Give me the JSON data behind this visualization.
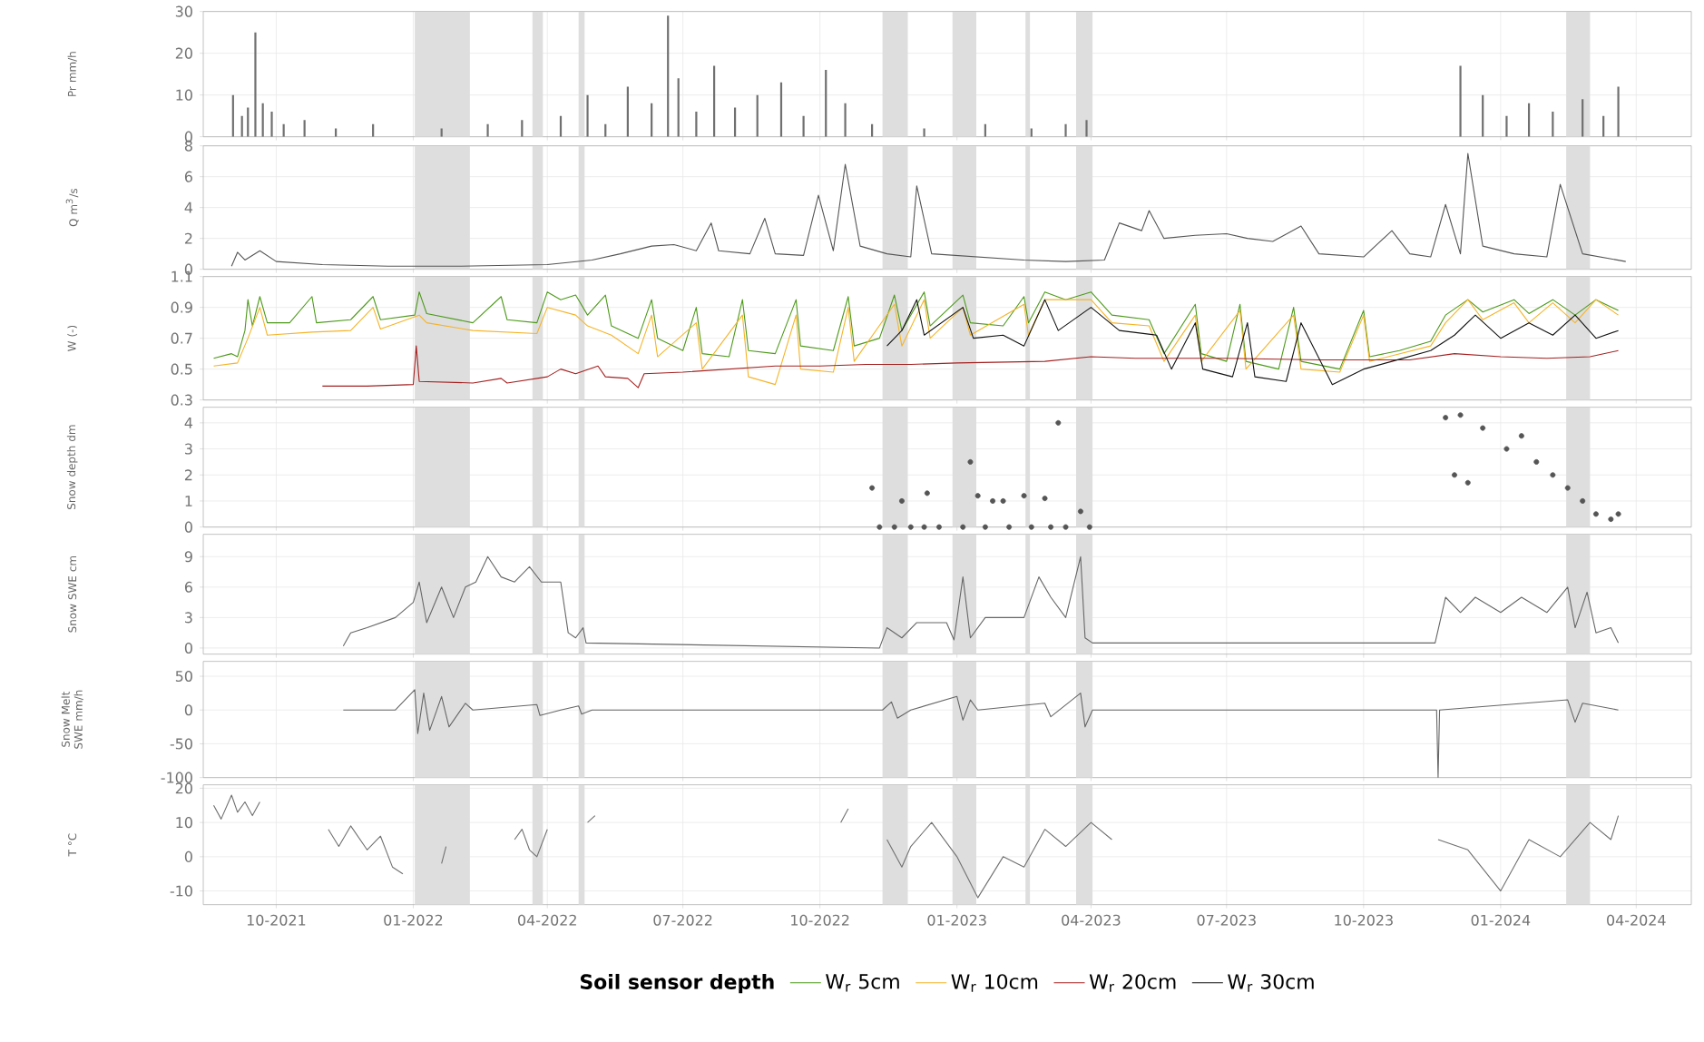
{
  "chart_data": [
    {
      "type": "bar",
      "ylabel": "Pr mm/h",
      "ylim": [
        0,
        30
      ],
      "yticks": [
        0,
        10,
        20,
        30
      ],
      "xlim": [
        "2021-08-13",
        "2024-05-08"
      ],
      "grid": true,
      "tick_labels": "y",
      "xticks": [
        {
          "value": "2021-10-01",
          "label": null
        },
        {
          "value": "2022-01-01",
          "label": null
        },
        {
          "value": "2022-04-01",
          "label": null
        },
        {
          "value": "2022-07-01",
          "label": null
        },
        {
          "value": "2022-10-01",
          "label": null
        },
        {
          "value": "2023-01-01",
          "label": null
        },
        {
          "value": "2023-04-01",
          "label": null
        },
        {
          "value": "2023-07-01",
          "label": null
        },
        {
          "value": "2023-10-01",
          "label": null
        },
        {
          "value": "2024-01-01",
          "label": null
        },
        {
          "value": "2024-04-01",
          "label": null
        }
      ],
      "bands": [
        {
          "axis": "x",
          "from": "2022-01-02",
          "to": "2022-02-08",
          "color": "#dedede"
        },
        {
          "axis": "x",
          "from": "2022-03-22",
          "to": "2022-03-29",
          "color": "#dedede"
        },
        {
          "axis": "x",
          "from": "2022-04-22",
          "to": "2022-04-26",
          "color": "#dedede"
        },
        {
          "axis": "x",
          "from": "2022-11-12",
          "to": "2022-11-29",
          "color": "#dedede"
        },
        {
          "axis": "x",
          "from": "2022-12-29",
          "to": "2023-01-14",
          "color": "#dedede"
        },
        {
          "axis": "x",
          "from": "2023-02-16",
          "to": "2023-02-19",
          "color": "#dedede"
        },
        {
          "axis": "x",
          "from": "2023-03-22",
          "to": "2023-04-02",
          "color": "#dedede"
        },
        {
          "axis": "x",
          "from": "2024-02-14",
          "to": "2024-03-01",
          "color": "#dedede"
        }
      ],
      "series": [
        {
          "color": "#707070",
          "x": [
            "2021-09-02",
            "2021-09-08",
            "2021-09-12",
            "2021-09-17",
            "2021-09-22",
            "2021-09-28",
            "2021-10-06",
            "2021-10-20",
            "2021-11-10",
            "2021-12-05",
            "2022-01-20",
            "2022-02-20",
            "2022-03-15",
            "2022-04-10",
            "2022-04-28",
            "2022-05-10",
            "2022-05-25",
            "2022-06-10",
            "2022-06-21",
            "2022-06-28",
            "2022-07-10",
            "2022-07-22",
            "2022-08-05",
            "2022-08-20",
            "2022-09-05",
            "2022-09-20",
            "2022-10-05",
            "2022-10-18",
            "2022-11-05",
            "2022-12-10",
            "2023-01-20",
            "2023-02-20",
            "2023-03-15",
            "2023-03-29",
            "2023-12-05",
            "2023-12-20",
            "2024-01-05",
            "2024-01-20",
            "2024-02-05",
            "2024-02-25",
            "2024-03-10",
            "2024-03-20"
          ],
          "values": [
            10,
            5,
            7,
            25,
            8,
            6,
            3,
            4,
            2,
            3,
            2,
            3,
            4,
            5,
            10,
            3,
            12,
            8,
            29,
            14,
            6,
            17,
            7,
            10,
            13,
            5,
            16,
            8,
            3,
            2,
            3,
            2,
            3,
            4,
            17,
            10,
            5,
            8,
            6,
            9,
            5,
            12
          ]
        }
      ]
    },
    {
      "type": "line",
      "ylabel": "Q m$^{3}$/s",
      "ylim": [
        0,
        8
      ],
      "yticks": [
        0,
        2,
        4,
        6,
        8
      ],
      "xlim": [
        "2021-08-13",
        "2024-05-08"
      ],
      "grid": true,
      "tick_labels": "y",
      "xticks": [
        {
          "value": "2021-10-01",
          "label": null
        },
        {
          "value": "2022-01-01",
          "label": null
        },
        {
          "value": "2022-04-01",
          "label": null
        },
        {
          "value": "2022-07-01",
          "label": null
        },
        {
          "value": "2022-10-01",
          "label": null
        },
        {
          "value": "2023-01-01",
          "label": null
        },
        {
          "value": "2023-04-01",
          "label": null
        },
        {
          "value": "2023-07-01",
          "label": null
        },
        {
          "value": "2023-10-01",
          "label": null
        },
        {
          "value": "2024-01-01",
          "label": null
        },
        {
          "value": "2024-04-01",
          "label": null
        }
      ],
      "bands": [
        {
          "axis": "x",
          "from": "2022-01-02",
          "to": "2022-02-08",
          "color": "#dedede"
        },
        {
          "axis": "x",
          "from": "2022-03-22",
          "to": "2022-03-29",
          "color": "#dedede"
        },
        {
          "axis": "x",
          "from": "2022-04-22",
          "to": "2022-04-26",
          "color": "#dedede"
        },
        {
          "axis": "x",
          "from": "2022-11-12",
          "to": "2022-11-29",
          "color": "#dedede"
        },
        {
          "axis": "x",
          "from": "2022-12-29",
          "to": "2023-01-14",
          "color": "#dedede"
        },
        {
          "axis": "x",
          "from": "2023-02-16",
          "to": "2023-02-19",
          "color": "#dedede"
        },
        {
          "axis": "x",
          "from": "2023-03-22",
          "to": "2023-04-02",
          "color": "#dedede"
        },
        {
          "axis": "x",
          "from": "2024-02-14",
          "to": "2024-03-01",
          "color": "#dedede"
        }
      ],
      "series": [
        {
          "color": "#555555",
          "x": [
            "2021-09-01",
            "2021-09-05",
            "2021-09-10",
            "2021-09-20",
            "2021-10-01",
            "2021-11-01",
            "2021-12-15",
            "2022-02-01",
            "2022-04-01",
            "2022-05-01",
            "2022-05-20",
            "2022-06-10",
            "2022-06-25",
            "2022-07-10",
            "2022-07-20",
            "2022-07-25",
            "2022-08-15",
            "2022-08-25",
            "2022-09-01",
            "2022-09-20",
            "2022-09-30",
            "2022-10-10",
            "2022-10-18",
            "2022-10-28",
            "2022-11-15",
            "2022-12-01",
            "2022-12-05",
            "2022-12-15",
            "2023-01-15",
            "2023-02-15",
            "2023-03-15",
            "2023-04-10",
            "2023-04-20",
            "2023-05-05",
            "2023-05-10",
            "2023-05-20",
            "2023-06-10",
            "2023-07-01",
            "2023-07-15",
            "2023-08-01",
            "2023-08-20",
            "2023-09-01",
            "2023-10-01",
            "2023-10-20",
            "2023-11-01",
            "2023-11-15",
            "2023-11-25",
            "2023-12-05",
            "2023-12-10",
            "2023-12-20",
            "2024-01-10",
            "2024-02-01",
            "2024-02-10",
            "2024-02-25",
            "2024-03-25"
          ],
          "values": [
            0.2,
            1.1,
            0.6,
            1.2,
            0.5,
            0.3,
            0.2,
            0.2,
            0.3,
            0.6,
            1.0,
            1.5,
            1.6,
            1.2,
            3.0,
            1.2,
            1.0,
            3.3,
            1.0,
            0.9,
            4.8,
            1.2,
            6.8,
            1.5,
            1.0,
            0.8,
            5.4,
            1.0,
            0.8,
            0.6,
            0.5,
            0.6,
            3.0,
            2.5,
            3.8,
            2.0,
            2.2,
            2.3,
            2.0,
            1.8,
            2.8,
            1.0,
            0.8,
            2.5,
            1.0,
            0.8,
            4.2,
            1.0,
            7.5,
            1.5,
            1.0,
            0.8,
            5.5,
            1.0,
            0.5
          ]
        }
      ]
    },
    {
      "type": "line",
      "ylabel": "W (-)",
      "ylim": [
        0.3,
        1.1
      ],
      "yticks": [
        0.3,
        0.5,
        0.7,
        0.9,
        1.1
      ],
      "xlim": [
        "2021-08-13",
        "2024-05-08"
      ],
      "grid": true,
      "tick_labels": "y",
      "legend": "bottom",
      "legend_title": "Soil sensor depth",
      "xticks": [
        {
          "value": "2021-10-01",
          "label": null
        },
        {
          "value": "2022-01-01",
          "label": null
        },
        {
          "value": "2022-04-01",
          "label": null
        },
        {
          "value": "2022-07-01",
          "label": null
        },
        {
          "value": "2022-10-01",
          "label": null
        },
        {
          "value": "2023-01-01",
          "label": null
        },
        {
          "value": "2023-04-01",
          "label": null
        },
        {
          "value": "2023-07-01",
          "label": null
        },
        {
          "value": "2023-10-01",
          "label": null
        },
        {
          "value": "2024-01-01",
          "label": null
        },
        {
          "value": "2024-04-01",
          "label": null
        }
      ],
      "bands": [
        {
          "axis": "x",
          "from": "2022-01-02",
          "to": "2022-02-08",
          "color": "#dedede"
        },
        {
          "axis": "x",
          "from": "2022-03-22",
          "to": "2022-03-29",
          "color": "#dedede"
        },
        {
          "axis": "x",
          "from": "2022-04-22",
          "to": "2022-04-26",
          "color": "#dedede"
        },
        {
          "axis": "x",
          "from": "2022-11-12",
          "to": "2022-11-29",
          "color": "#dedede"
        },
        {
          "axis": "x",
          "from": "2022-12-29",
          "to": "2023-01-14",
          "color": "#dedede"
        },
        {
          "axis": "x",
          "from": "2023-02-16",
          "to": "2023-02-19",
          "color": "#dedede"
        },
        {
          "axis": "x",
          "from": "2023-03-22",
          "to": "2023-04-02",
          "color": "#dedede"
        },
        {
          "axis": "x",
          "from": "2024-02-14",
          "to": "2024-03-01",
          "color": "#dedede"
        }
      ],
      "series": [
        {
          "name": "W$_{r}$ 5cm",
          "color": "#4d9a1a",
          "x": [
            "2021-08-20",
            "2021-09-01",
            "2021-09-05",
            "2021-09-10",
            "2021-09-12",
            "2021-09-15",
            "2021-09-20",
            "2021-09-25",
            "2021-10-10",
            "2021-10-25",
            "2021-10-28",
            "2021-11-20",
            "2021-12-05",
            "2021-12-10",
            "2022-01-02",
            "2022-01-05",
            "2022-01-10",
            "2022-02-10",
            "2022-03-01",
            "2022-03-05",
            "2022-03-25",
            "2022-04-01",
            "2022-04-10",
            "2022-04-20",
            "2022-04-28",
            "2022-05-10",
            "2022-05-14",
            "2022-06-01",
            "2022-06-10",
            "2022-06-14",
            "2022-07-01",
            "2022-07-10",
            "2022-07-14",
            "2022-08-01",
            "2022-08-10",
            "2022-08-14",
            "2022-09-01",
            "2022-09-15",
            "2022-09-18",
            "2022-10-10",
            "2022-10-20",
            "2022-10-24",
            "2022-11-10",
            "2022-11-20",
            "2022-11-25",
            "2022-12-10",
            "2022-12-14",
            "2023-01-05",
            "2023-01-10",
            "2023-02-01",
            "2023-02-15",
            "2023-02-18",
            "2023-03-01",
            "2023-03-15",
            "2023-04-01",
            "2023-04-15",
            "2023-05-10",
            "2023-05-20",
            "2023-06-10",
            "2023-06-14",
            "2023-07-01",
            "2023-07-10",
            "2023-07-14",
            "2023-08-05",
            "2023-08-15",
            "2023-08-20",
            "2023-09-15",
            "2023-10-01",
            "2023-10-05",
            "2023-10-25",
            "2023-11-15",
            "2023-11-25",
            "2023-12-10",
            "2023-12-20",
            "2024-01-10",
            "2024-01-20",
            "2024-02-05",
            "2024-02-20",
            "2024-03-05",
            "2024-03-20"
          ],
          "values": [
            0.57,
            0.6,
            0.58,
            0.75,
            0.95,
            0.78,
            0.97,
            0.8,
            0.8,
            0.97,
            0.8,
            0.82,
            0.97,
            0.82,
            0.85,
            1.0,
            0.86,
            0.8,
            0.97,
            0.82,
            0.8,
            1.0,
            0.95,
            0.98,
            0.85,
            0.98,
            0.78,
            0.7,
            0.95,
            0.7,
            0.62,
            0.9,
            0.6,
            0.58,
            0.95,
            0.62,
            0.6,
            0.95,
            0.65,
            0.62,
            0.97,
            0.65,
            0.7,
            0.98,
            0.75,
            1.0,
            0.78,
            0.98,
            0.8,
            0.78,
            0.97,
            0.8,
            1.0,
            0.95,
            1.0,
            0.85,
            0.82,
            0.6,
            0.92,
            0.6,
            0.55,
            0.92,
            0.55,
            0.5,
            0.9,
            0.55,
            0.5,
            0.88,
            0.58,
            0.62,
            0.68,
            0.85,
            0.95,
            0.87,
            0.95,
            0.86,
            0.95,
            0.85,
            0.95,
            0.88
          ]
        },
        {
          "name": "W$_{r}$ 10cm",
          "color": "#f5b428",
          "x": [
            "2021-08-20",
            "2021-09-05",
            "2021-09-12",
            "2021-09-20",
            "2021-09-25",
            "2021-10-25",
            "2021-11-20",
            "2021-12-05",
            "2021-12-10",
            "2022-01-05",
            "2022-01-10",
            "2022-02-10",
            "2022-03-25",
            "2022-04-01",
            "2022-04-20",
            "2022-04-28",
            "2022-05-14",
            "2022-06-01",
            "2022-06-10",
            "2022-06-14",
            "2022-07-10",
            "2022-07-14",
            "2022-08-10",
            "2022-08-14",
            "2022-09-01",
            "2022-09-15",
            "2022-09-18",
            "2022-10-10",
            "2022-10-20",
            "2022-10-24",
            "2022-11-20",
            "2022-11-25",
            "2022-12-10",
            "2022-12-14",
            "2023-01-05",
            "2023-01-10",
            "2023-02-15",
            "2023-02-18",
            "2023-03-01",
            "2023-04-01",
            "2023-04-15",
            "2023-05-10",
            "2023-05-20",
            "2023-06-10",
            "2023-06-14",
            "2023-07-10",
            "2023-07-14",
            "2023-08-15",
            "2023-08-20",
            "2023-09-15",
            "2023-10-01",
            "2023-10-05",
            "2023-11-15",
            "2023-11-25",
            "2023-12-10",
            "2023-12-20",
            "2024-01-10",
            "2024-01-20",
            "2024-02-05",
            "2024-02-20",
            "2024-03-05",
            "2024-03-20"
          ],
          "values": [
            0.52,
            0.54,
            0.7,
            0.9,
            0.72,
            0.74,
            0.75,
            0.9,
            0.76,
            0.85,
            0.8,
            0.75,
            0.73,
            0.9,
            0.85,
            0.78,
            0.72,
            0.6,
            0.85,
            0.58,
            0.8,
            0.5,
            0.85,
            0.45,
            0.4,
            0.85,
            0.5,
            0.48,
            0.9,
            0.55,
            0.92,
            0.65,
            0.95,
            0.7,
            0.9,
            0.72,
            0.92,
            0.72,
            0.95,
            0.95,
            0.8,
            0.78,
            0.55,
            0.85,
            0.55,
            0.88,
            0.5,
            0.85,
            0.5,
            0.48,
            0.85,
            0.55,
            0.65,
            0.8,
            0.95,
            0.82,
            0.93,
            0.8,
            0.93,
            0.8,
            0.95,
            0.85
          ]
        },
        {
          "name": "W$_{r}$ 20cm",
          "color": "#a52020",
          "x": [
            "2021-11-01",
            "2021-12-01",
            "2022-01-01",
            "2022-01-03",
            "2022-01-05",
            "2022-02-10",
            "2022-03-01",
            "2022-03-05",
            "2022-04-01",
            "2022-04-10",
            "2022-04-20",
            "2022-05-05",
            "2022-05-10",
            "2022-05-25",
            "2022-06-01",
            "2022-06-05",
            "2022-07-01",
            "2022-08-01",
            "2022-09-01",
            "2022-10-01",
            "2022-11-01",
            "2022-12-01",
            "2023-01-01",
            "2023-03-01",
            "2023-04-01",
            "2023-05-01",
            "2023-07-01",
            "2023-09-01",
            "2023-11-01",
            "2023-12-01",
            "2024-01-01",
            "2024-02-01",
            "2024-03-01",
            "2024-03-20"
          ],
          "values": [
            0.39,
            0.39,
            0.4,
            0.65,
            0.42,
            0.41,
            0.44,
            0.41,
            0.45,
            0.5,
            0.47,
            0.52,
            0.45,
            0.44,
            0.38,
            0.47,
            0.48,
            0.5,
            0.52,
            0.52,
            0.53,
            0.53,
            0.54,
            0.55,
            0.58,
            0.57,
            0.57,
            0.56,
            0.56,
            0.6,
            0.58,
            0.57,
            0.58,
            0.62
          ]
        },
        {
          "name": "W$_{r}$ 30cm",
          "color": "#111111",
          "x": [
            "2022-11-15",
            "2022-11-25",
            "2022-12-05",
            "2022-12-10",
            "2023-01-05",
            "2023-01-12",
            "2023-02-01",
            "2023-02-15",
            "2023-03-01",
            "2023-03-10",
            "2023-04-01",
            "2023-04-20",
            "2023-05-15",
            "2023-05-25",
            "2023-06-10",
            "2023-06-15",
            "2023-07-05",
            "2023-07-15",
            "2023-07-20",
            "2023-08-10",
            "2023-08-20",
            "2023-09-10",
            "2023-10-01",
            "2023-10-20",
            "2023-11-15",
            "2023-12-01",
            "2023-12-15",
            "2024-01-01",
            "2024-01-20",
            "2024-02-05",
            "2024-02-20",
            "2024-03-05",
            "2024-03-20"
          ],
          "values": [
            0.65,
            0.75,
            0.95,
            0.72,
            0.9,
            0.7,
            0.72,
            0.65,
            0.95,
            0.75,
            0.9,
            0.75,
            0.72,
            0.5,
            0.8,
            0.5,
            0.45,
            0.8,
            0.45,
            0.42,
            0.8,
            0.4,
            0.5,
            0.55,
            0.62,
            0.72,
            0.85,
            0.7,
            0.8,
            0.72,
            0.85,
            0.7,
            0.75
          ]
        }
      ]
    },
    {
      "type": "scatter",
      "ylabel": "Snow depth dm",
      "ylim": [
        0,
        4.6
      ],
      "yticks": [
        0,
        1,
        2,
        3,
        4
      ],
      "xlim": [
        "2021-08-13",
        "2024-05-08"
      ],
      "grid": true,
      "tick_labels": "y",
      "xticks": [
        {
          "value": "2021-10-01",
          "label": null
        },
        {
          "value": "2022-01-01",
          "label": null
        },
        {
          "value": "2022-04-01",
          "label": null
        },
        {
          "value": "2022-07-01",
          "label": null
        },
        {
          "value": "2022-10-01",
          "label": null
        },
        {
          "value": "2023-01-01",
          "label": null
        },
        {
          "value": "2023-04-01",
          "label": null
        },
        {
          "value": "2023-07-01",
          "label": null
        },
        {
          "value": "2023-10-01",
          "label": null
        },
        {
          "value": "2024-01-01",
          "label": null
        },
        {
          "value": "2024-04-01",
          "label": null
        }
      ],
      "bands": [
        {
          "axis": "x",
          "from": "2022-01-02",
          "to": "2022-02-08",
          "color": "#dedede"
        },
        {
          "axis": "x",
          "from": "2022-03-22",
          "to": "2022-03-29",
          "color": "#dedede"
        },
        {
          "axis": "x",
          "from": "2022-04-22",
          "to": "2022-04-26",
          "color": "#dedede"
        },
        {
          "axis": "x",
          "from": "2022-11-12",
          "to": "2022-11-29",
          "color": "#dedede"
        },
        {
          "axis": "x",
          "from": "2022-12-29",
          "to": "2023-01-14",
          "color": "#dedede"
        },
        {
          "axis": "x",
          "from": "2023-02-16",
          "to": "2023-02-19",
          "color": "#dedede"
        },
        {
          "axis": "x",
          "from": "2023-03-22",
          "to": "2023-04-02",
          "color": "#dedede"
        },
        {
          "axis": "x",
          "from": "2024-02-14",
          "to": "2024-03-01",
          "color": "#dedede"
        }
      ],
      "series": [
        {
          "color": "#555555",
          "x": [
            "2022-11-05",
            "2022-11-10",
            "2022-11-20",
            "2022-11-25",
            "2022-12-01",
            "2022-12-10",
            "2022-12-12",
            "2022-12-20",
            "2023-01-05",
            "2023-01-10",
            "2023-01-15",
            "2023-01-20",
            "2023-01-25",
            "2023-02-01",
            "2023-02-05",
            "2023-02-15",
            "2023-02-20",
            "2023-03-01",
            "2023-03-05",
            "2023-03-10",
            "2023-03-15",
            "2023-03-25",
            "2023-03-31",
            "2023-11-25",
            "2023-12-01",
            "2023-12-05",
            "2023-12-10",
            "2023-12-20",
            "2024-01-05",
            "2024-01-15",
            "2024-01-25",
            "2024-02-05",
            "2024-02-15",
            "2024-02-25",
            "2024-03-05",
            "2024-03-15",
            "2024-03-20"
          ],
          "values": [
            1.5,
            0,
            0,
            1.0,
            0,
            0,
            1.3,
            0,
            0,
            2.5,
            1.2,
            0,
            1.0,
            1.0,
            0,
            1.2,
            0,
            1.1,
            0,
            4.0,
            0,
            0.6,
            0,
            4.2,
            2.0,
            4.3,
            1.7,
            3.8,
            3.0,
            3.5,
            2.5,
            2.0,
            1.5,
            1.0,
            0.5,
            0.3,
            0.5
          ]
        }
      ]
    },
    {
      "type": "line",
      "ylabel": "Snow SWE cm",
      "ylim": [
        -0.6,
        11.2
      ],
      "yticks": [
        0,
        3,
        6,
        9
      ],
      "xlim": [
        "2021-08-13",
        "2024-05-08"
      ],
      "grid": true,
      "tick_labels": "y",
      "xticks": [
        {
          "value": "2021-10-01",
          "label": null
        },
        {
          "value": "2022-01-01",
          "label": null
        },
        {
          "value": "2022-04-01",
          "label": null
        },
        {
          "value": "2022-07-01",
          "label": null
        },
        {
          "value": "2022-10-01",
          "label": null
        },
        {
          "value": "2023-01-01",
          "label": null
        },
        {
          "value": "2023-04-01",
          "label": null
        },
        {
          "value": "2023-07-01",
          "label": null
        },
        {
          "value": "2023-10-01",
          "label": null
        },
        {
          "value": "2024-01-01",
          "label": null
        },
        {
          "value": "2024-04-01",
          "label": null
        }
      ],
      "bands": [
        {
          "axis": "x",
          "from": "2022-01-02",
          "to": "2022-02-08",
          "color": "#dedede"
        },
        {
          "axis": "x",
          "from": "2022-03-22",
          "to": "2022-03-29",
          "color": "#dedede"
        },
        {
          "axis": "x",
          "from": "2022-04-22",
          "to": "2022-04-26",
          "color": "#dedede"
        },
        {
          "axis": "x",
          "from": "2022-11-12",
          "to": "2022-11-29",
          "color": "#dedede"
        },
        {
          "axis": "x",
          "from": "2022-12-29",
          "to": "2023-01-14",
          "color": "#dedede"
        },
        {
          "axis": "x",
          "from": "2023-02-16",
          "to": "2023-02-19",
          "color": "#dedede"
        },
        {
          "axis": "x",
          "from": "2023-03-22",
          "to": "2023-04-02",
          "color": "#dedede"
        },
        {
          "axis": "x",
          "from": "2024-02-14",
          "to": "2024-03-01",
          "color": "#dedede"
        }
      ],
      "series": [
        {
          "color": "#666666",
          "x": [
            "2021-11-15",
            "2021-11-20",
            "2021-12-01",
            "2021-12-20",
            "2022-01-01",
            "2022-01-05",
            "2022-01-10",
            "2022-01-20",
            "2022-01-28",
            "2022-02-05",
            "2022-02-12",
            "2022-02-20",
            "2022-03-01",
            "2022-03-10",
            "2022-03-20",
            "2022-03-28",
            "2022-04-10",
            "2022-04-15",
            "2022-04-20",
            "2022-04-25",
            "2022-04-27",
            "2022-11-10",
            "2022-11-15",
            "2022-11-25",
            "2022-12-05",
            "2022-12-25",
            "2022-12-30",
            "2023-01-05",
            "2023-01-10",
            "2023-01-20",
            "2023-02-15",
            "2023-02-25",
            "2023-03-05",
            "2023-03-15",
            "2023-03-25",
            "2023-03-28",
            "2023-04-02",
            "2023-11-18",
            "2023-11-25",
            "2023-12-05",
            "2023-12-15",
            "2024-01-01",
            "2024-01-15",
            "2024-02-01",
            "2024-02-15",
            "2024-02-20",
            "2024-02-28",
            "2024-03-05",
            "2024-03-15",
            "2024-03-20"
          ],
          "values": [
            0.2,
            1.5,
            2.0,
            3.0,
            4.5,
            6.5,
            2.5,
            6.0,
            3.0,
            6.0,
            6.5,
            9.0,
            7.0,
            6.5,
            8.0,
            6.5,
            6.5,
            1.5,
            1.0,
            2.0,
            0.5,
            0,
            2.0,
            1.0,
            2.5,
            2.5,
            0.8,
            7.0,
            1.0,
            3.0,
            3.0,
            7.0,
            5.0,
            3.0,
            9.0,
            1.0,
            0.5,
            0.5,
            5.0,
            3.5,
            5.0,
            3.5,
            5.0,
            3.5,
            6.0,
            2.0,
            5.5,
            1.5,
            2.0,
            0.5
          ]
        }
      ]
    },
    {
      "type": "line",
      "ylabel": "Snow Melt SWE mm/h",
      "ylim": [
        -100,
        72
      ],
      "yticks": [
        -100,
        -50,
        0,
        50
      ],
      "xlim": [
        "2021-08-13",
        "2024-05-08"
      ],
      "grid": true,
      "tick_labels": "y",
      "xticks": [
        {
          "value": "2021-10-01",
          "label": null
        },
        {
          "value": "2022-01-01",
          "label": null
        },
        {
          "value": "2022-04-01",
          "label": null
        },
        {
          "value": "2022-07-01",
          "label": null
        },
        {
          "value": "2022-10-01",
          "label": null
        },
        {
          "value": "2023-01-01",
          "label": null
        },
        {
          "value": "2023-04-01",
          "label": null
        },
        {
          "value": "2023-07-01",
          "label": null
        },
        {
          "value": "2023-10-01",
          "label": null
        },
        {
          "value": "2024-01-01",
          "label": null
        },
        {
          "value": "2024-04-01",
          "label": null
        }
      ],
      "bands": [
        {
          "axis": "x",
          "from": "2022-01-02",
          "to": "2022-02-08",
          "color": "#dedede"
        },
        {
          "axis": "x",
          "from": "2022-03-22",
          "to": "2022-03-29",
          "color": "#dedede"
        },
        {
          "axis": "x",
          "from": "2022-04-22",
          "to": "2022-04-26",
          "color": "#dedede"
        },
        {
          "axis": "x",
          "from": "2022-11-12",
          "to": "2022-11-29",
          "color": "#dedede"
        },
        {
          "axis": "x",
          "from": "2022-12-29",
          "to": "2023-01-14",
          "color": "#dedede"
        },
        {
          "axis": "x",
          "from": "2023-02-16",
          "to": "2023-02-19",
          "color": "#dedede"
        },
        {
          "axis": "x",
          "from": "2023-03-22",
          "to": "2023-04-02",
          "color": "#dedede"
        },
        {
          "axis": "x",
          "from": "2024-02-14",
          "to": "2024-03-01",
          "color": "#dedede"
        }
      ],
      "series": [
        {
          "color": "#666666",
          "x": [
            "2021-11-15",
            "2021-12-20",
            "2022-01-02",
            "2022-01-04",
            "2022-01-08",
            "2022-01-12",
            "2022-01-20",
            "2022-01-25",
            "2022-02-05",
            "2022-02-10",
            "2022-03-25",
            "2022-03-27",
            "2022-04-10",
            "2022-04-22",
            "2022-04-24",
            "2022-05-01",
            "2022-11-12",
            "2022-11-18",
            "2022-11-22",
            "2022-12-01",
            "2023-01-01",
            "2023-01-05",
            "2023-01-10",
            "2023-01-15",
            "2023-03-01",
            "2023-03-05",
            "2023-03-25",
            "2023-03-28",
            "2023-04-02",
            "2023-11-19",
            "2023-11-20",
            "2023-11-21",
            "2024-02-15",
            "2024-02-20",
            "2024-02-25",
            "2024-03-20"
          ],
          "values": [
            0,
            0,
            30,
            -35,
            25,
            -30,
            20,
            -25,
            10,
            0,
            8,
            -8,
            0,
            6,
            -6,
            0,
            0,
            12,
            -12,
            0,
            20,
            -15,
            15,
            0,
            10,
            -10,
            25,
            -25,
            0,
            0,
            -100,
            0,
            15,
            -18,
            10,
            0
          ]
        }
      ]
    },
    {
      "type": "line",
      "ylabel": "T °C",
      "ylim": [
        -14,
        21
      ],
      "yticks": [
        -10,
        0,
        10,
        20
      ],
      "xlim": [
        "2021-08-13",
        "2024-05-08"
      ],
      "grid": true,
      "xticks": [
        {
          "value": "2021-10-01",
          "label": "10-2021"
        },
        {
          "value": "2022-01-01",
          "label": "01-2022"
        },
        {
          "value": "2022-04-01",
          "label": "04-2022"
        },
        {
          "value": "2022-07-01",
          "label": "07-2022"
        },
        {
          "value": "2022-10-01",
          "label": "10-2022"
        },
        {
          "value": "2023-01-01",
          "label": "01-2023"
        },
        {
          "value": "2023-04-01",
          "label": "04-2023"
        },
        {
          "value": "2023-07-01",
          "label": "07-2023"
        },
        {
          "value": "2023-10-01",
          "label": "10-2023"
        },
        {
          "value": "2024-01-01",
          "label": "01-2024"
        },
        {
          "value": "2024-04-01",
          "label": "04-2024"
        }
      ],
      "bands": [
        {
          "axis": "x",
          "from": "2022-01-02",
          "to": "2022-02-08",
          "color": "#dedede"
        },
        {
          "axis": "x",
          "from": "2022-03-22",
          "to": "2022-03-29",
          "color": "#dedede"
        },
        {
          "axis": "x",
          "from": "2022-04-22",
          "to": "2022-04-26",
          "color": "#dedede"
        },
        {
          "axis": "x",
          "from": "2022-11-12",
          "to": "2022-11-29",
          "color": "#dedede"
        },
        {
          "axis": "x",
          "from": "2022-12-29",
          "to": "2023-01-14",
          "color": "#dedede"
        },
        {
          "axis": "x",
          "from": "2023-02-16",
          "to": "2023-02-19",
          "color": "#dedede"
        },
        {
          "axis": "x",
          "from": "2023-03-22",
          "to": "2023-04-02",
          "color": "#dedede"
        },
        {
          "axis": "x",
          "from": "2024-02-14",
          "to": "2024-03-01",
          "color": "#dedede"
        }
      ],
      "series": [
        {
          "color": "#707070",
          "x": [
            "2021-08-20",
            "2021-08-25",
            "2021-09-01",
            "2021-09-05",
            "2021-09-10",
            "2021-09-15",
            "2021-09-20",
            "2021-10-15",
            "2021-11-05",
            "2021-11-12",
            "2021-11-20",
            "2021-12-01",
            "2021-12-10",
            "2021-12-18",
            "2021-12-25",
            "2022-01-05",
            "2022-01-20",
            "2022-01-23",
            "2022-02-20",
            "2022-03-10",
            "2022-03-15",
            "2022-03-20",
            "2022-03-25",
            "2022-04-01",
            "2022-04-10",
            "2022-04-28",
            "2022-05-03",
            "2022-06-01",
            "2022-10-15",
            "2022-10-20",
            "2022-11-01",
            "2022-11-15",
            "2022-11-25",
            "2022-12-01",
            "2022-12-15",
            "2023-01-01",
            "2023-01-15",
            "2023-02-01",
            "2023-02-15",
            "2023-03-01",
            "2023-03-15",
            "2023-04-01",
            "2023-04-15",
            "2023-06-01",
            "2023-11-20",
            "2023-12-10",
            "2024-01-01",
            "2024-01-20",
            "2024-02-10",
            "2024-03-01",
            "2024-03-15",
            "2024-03-20"
          ],
          "values": [
            15,
            11,
            18,
            13,
            16,
            12,
            16,
            null,
            8,
            3,
            9,
            2,
            6,
            -3,
            -5,
            null,
            -2,
            3,
            null,
            5,
            8,
            2,
            0,
            8,
            null,
            10,
            12,
            null,
            10,
            14,
            null,
            5,
            -3,
            3,
            10,
            0,
            -12,
            0,
            -3,
            8,
            3,
            10,
            5,
            null,
            5,
            2,
            -10,
            5,
            0,
            10,
            5,
            12
          ]
        }
      ]
    }
  ]
}
